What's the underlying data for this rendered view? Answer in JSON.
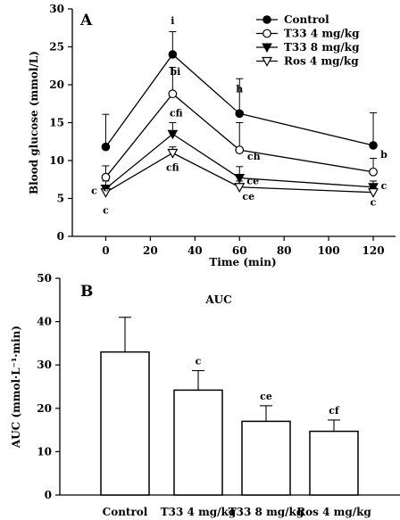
{
  "chart_data": [
    {
      "type": "line",
      "panel_label": "A",
      "xlabel": "Time (min)",
      "ylabel": "Blood glucose (mmol/L)",
      "xlim": [
        -15,
        130
      ],
      "ylim": [
        0,
        30
      ],
      "x_ticks": [
        "0",
        "20",
        "40",
        "60",
        "80",
        "100",
        "120"
      ],
      "y_ticks": [
        "0",
        "5",
        "10",
        "15",
        "20",
        "25",
        "30"
      ],
      "x": [
        0,
        30,
        60,
        120
      ],
      "legend": "top-right",
      "series": [
        {
          "name": "Control",
          "marker": "filled-circle",
          "values": [
            11.8,
            24.0,
            16.2,
            12.0
          ],
          "errors": [
            4.3,
            3.0,
            4.6,
            4.3
          ],
          "labels": [
            "",
            "i",
            "h",
            ""
          ]
        },
        {
          "name": "T33 4 mg/kg",
          "marker": "open-circle",
          "values": [
            7.8,
            18.8,
            11.4,
            8.5
          ],
          "errors": [
            1.5,
            3.5,
            3.6,
            1.8
          ],
          "labels": [
            "c",
            "bi",
            "ch",
            "b"
          ]
        },
        {
          "name": "T33 8 mg/kg",
          "marker": "filled-triangle-down",
          "values": [
            6.3,
            13.5,
            7.7,
            6.5
          ],
          "errors": [
            1.0,
            1.5,
            1.5,
            0.8
          ],
          "labels": [
            "c",
            "cfi",
            "ce",
            "c"
          ]
        },
        {
          "name": "Ros 4 mg/kg",
          "marker": "open-triangle-down",
          "values": [
            5.8,
            11.0,
            6.5,
            5.8
          ],
          "errors": [
            0.8,
            0.8,
            0.8,
            0.6
          ],
          "labels": [
            "c",
            "cfi",
            "ce",
            "c"
          ]
        }
      ]
    },
    {
      "type": "bar",
      "panel_label": "B",
      "title": "AUC",
      "ylabel": "AUC (mmol·L⁻¹·min)",
      "ylim": [
        0,
        50
      ],
      "y_ticks": [
        "0",
        "10",
        "20",
        "30",
        "40",
        "50"
      ],
      "categories": [
        "Control",
        "T33 4 mg/kg",
        "T33 8 mg/kg",
        "Ros 4 mg/kg"
      ],
      "values": [
        33.0,
        24.2,
        17.0,
        14.7
      ],
      "errors": [
        8.0,
        4.5,
        3.6,
        2.6
      ],
      "labels": [
        "",
        "c",
        "ce",
        "cf"
      ]
    }
  ]
}
